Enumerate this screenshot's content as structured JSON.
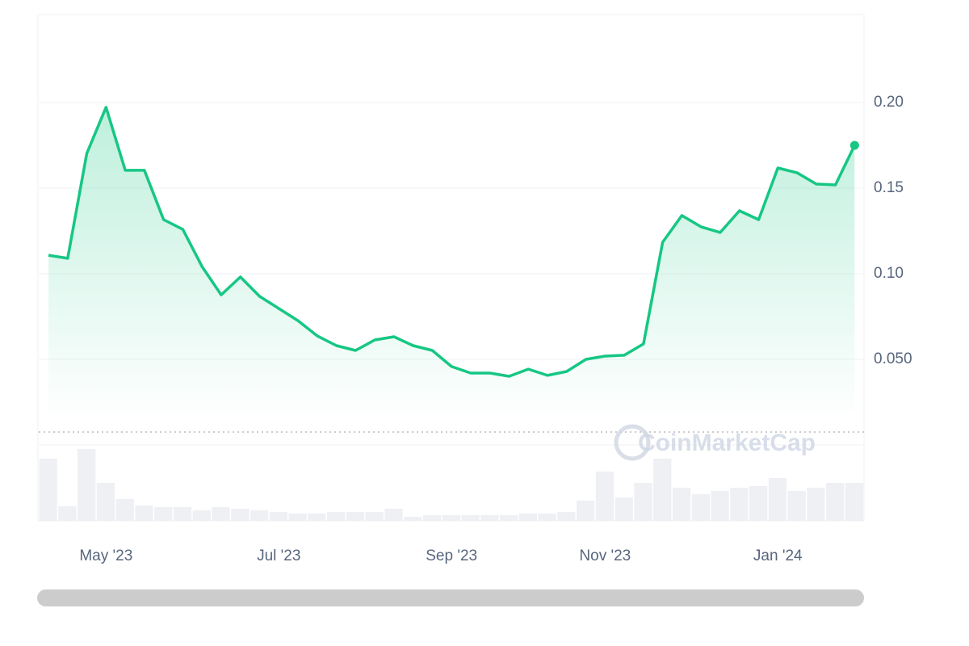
{
  "chart_data": {
    "type": "line",
    "categories": [
      null,
      null,
      null,
      "May '23",
      null,
      null,
      null,
      null,
      null,
      null,
      null,
      null,
      "Jul '23",
      null,
      null,
      null,
      null,
      null,
      null,
      null,
      null,
      "Sep '23",
      null,
      null,
      null,
      null,
      null,
      null,
      null,
      "Nov '23",
      null,
      null,
      null,
      null,
      null,
      null,
      null,
      null,
      "Jan '24",
      null,
      null,
      null,
      null
    ],
    "values": [
      0.1108,
      0.109,
      0.1703,
      0.1972,
      0.1604,
      0.1604,
      0.1316,
      0.1259,
      0.1042,
      0.0877,
      0.0981,
      0.0868,
      0.0797,
      0.0726,
      0.0637,
      0.058,
      0.0552,
      0.0613,
      0.0632,
      0.058,
      0.0552,
      0.0458,
      0.042,
      0.042,
      0.0401,
      0.0443,
      0.0406,
      0.0429,
      0.05,
      0.0519,
      0.0524,
      0.059,
      0.1184,
      0.134,
      0.1274,
      0.1241,
      0.1368,
      0.1316,
      0.1618,
      0.159,
      0.1524,
      0.1519,
      0.175
    ],
    "color": "#16c784",
    "volume": {
      "color": "#eef0f3",
      "values": [
        77,
        18,
        89,
        47,
        27,
        19,
        17,
        17,
        13,
        17,
        15,
        13,
        11,
        9,
        9,
        11,
        11,
        11,
        15,
        5,
        7,
        7,
        7,
        7,
        7,
        9,
        9,
        11,
        25,
        61,
        29,
        47,
        77,
        41,
        33,
        37,
        41,
        43,
        53,
        37,
        41,
        47,
        47
      ]
    },
    "ylim": [
      0,
      0.2514
    ],
    "yticks": [
      {
        "value": 0.05,
        "label": "0.050"
      },
      {
        "value": 0.1,
        "label": "0.10"
      },
      0.15,
      {
        "value": 0.2,
        "label": "0.20"
      }
    ],
    "grid": true,
    "watermark": "CoinMarketCap"
  }
}
